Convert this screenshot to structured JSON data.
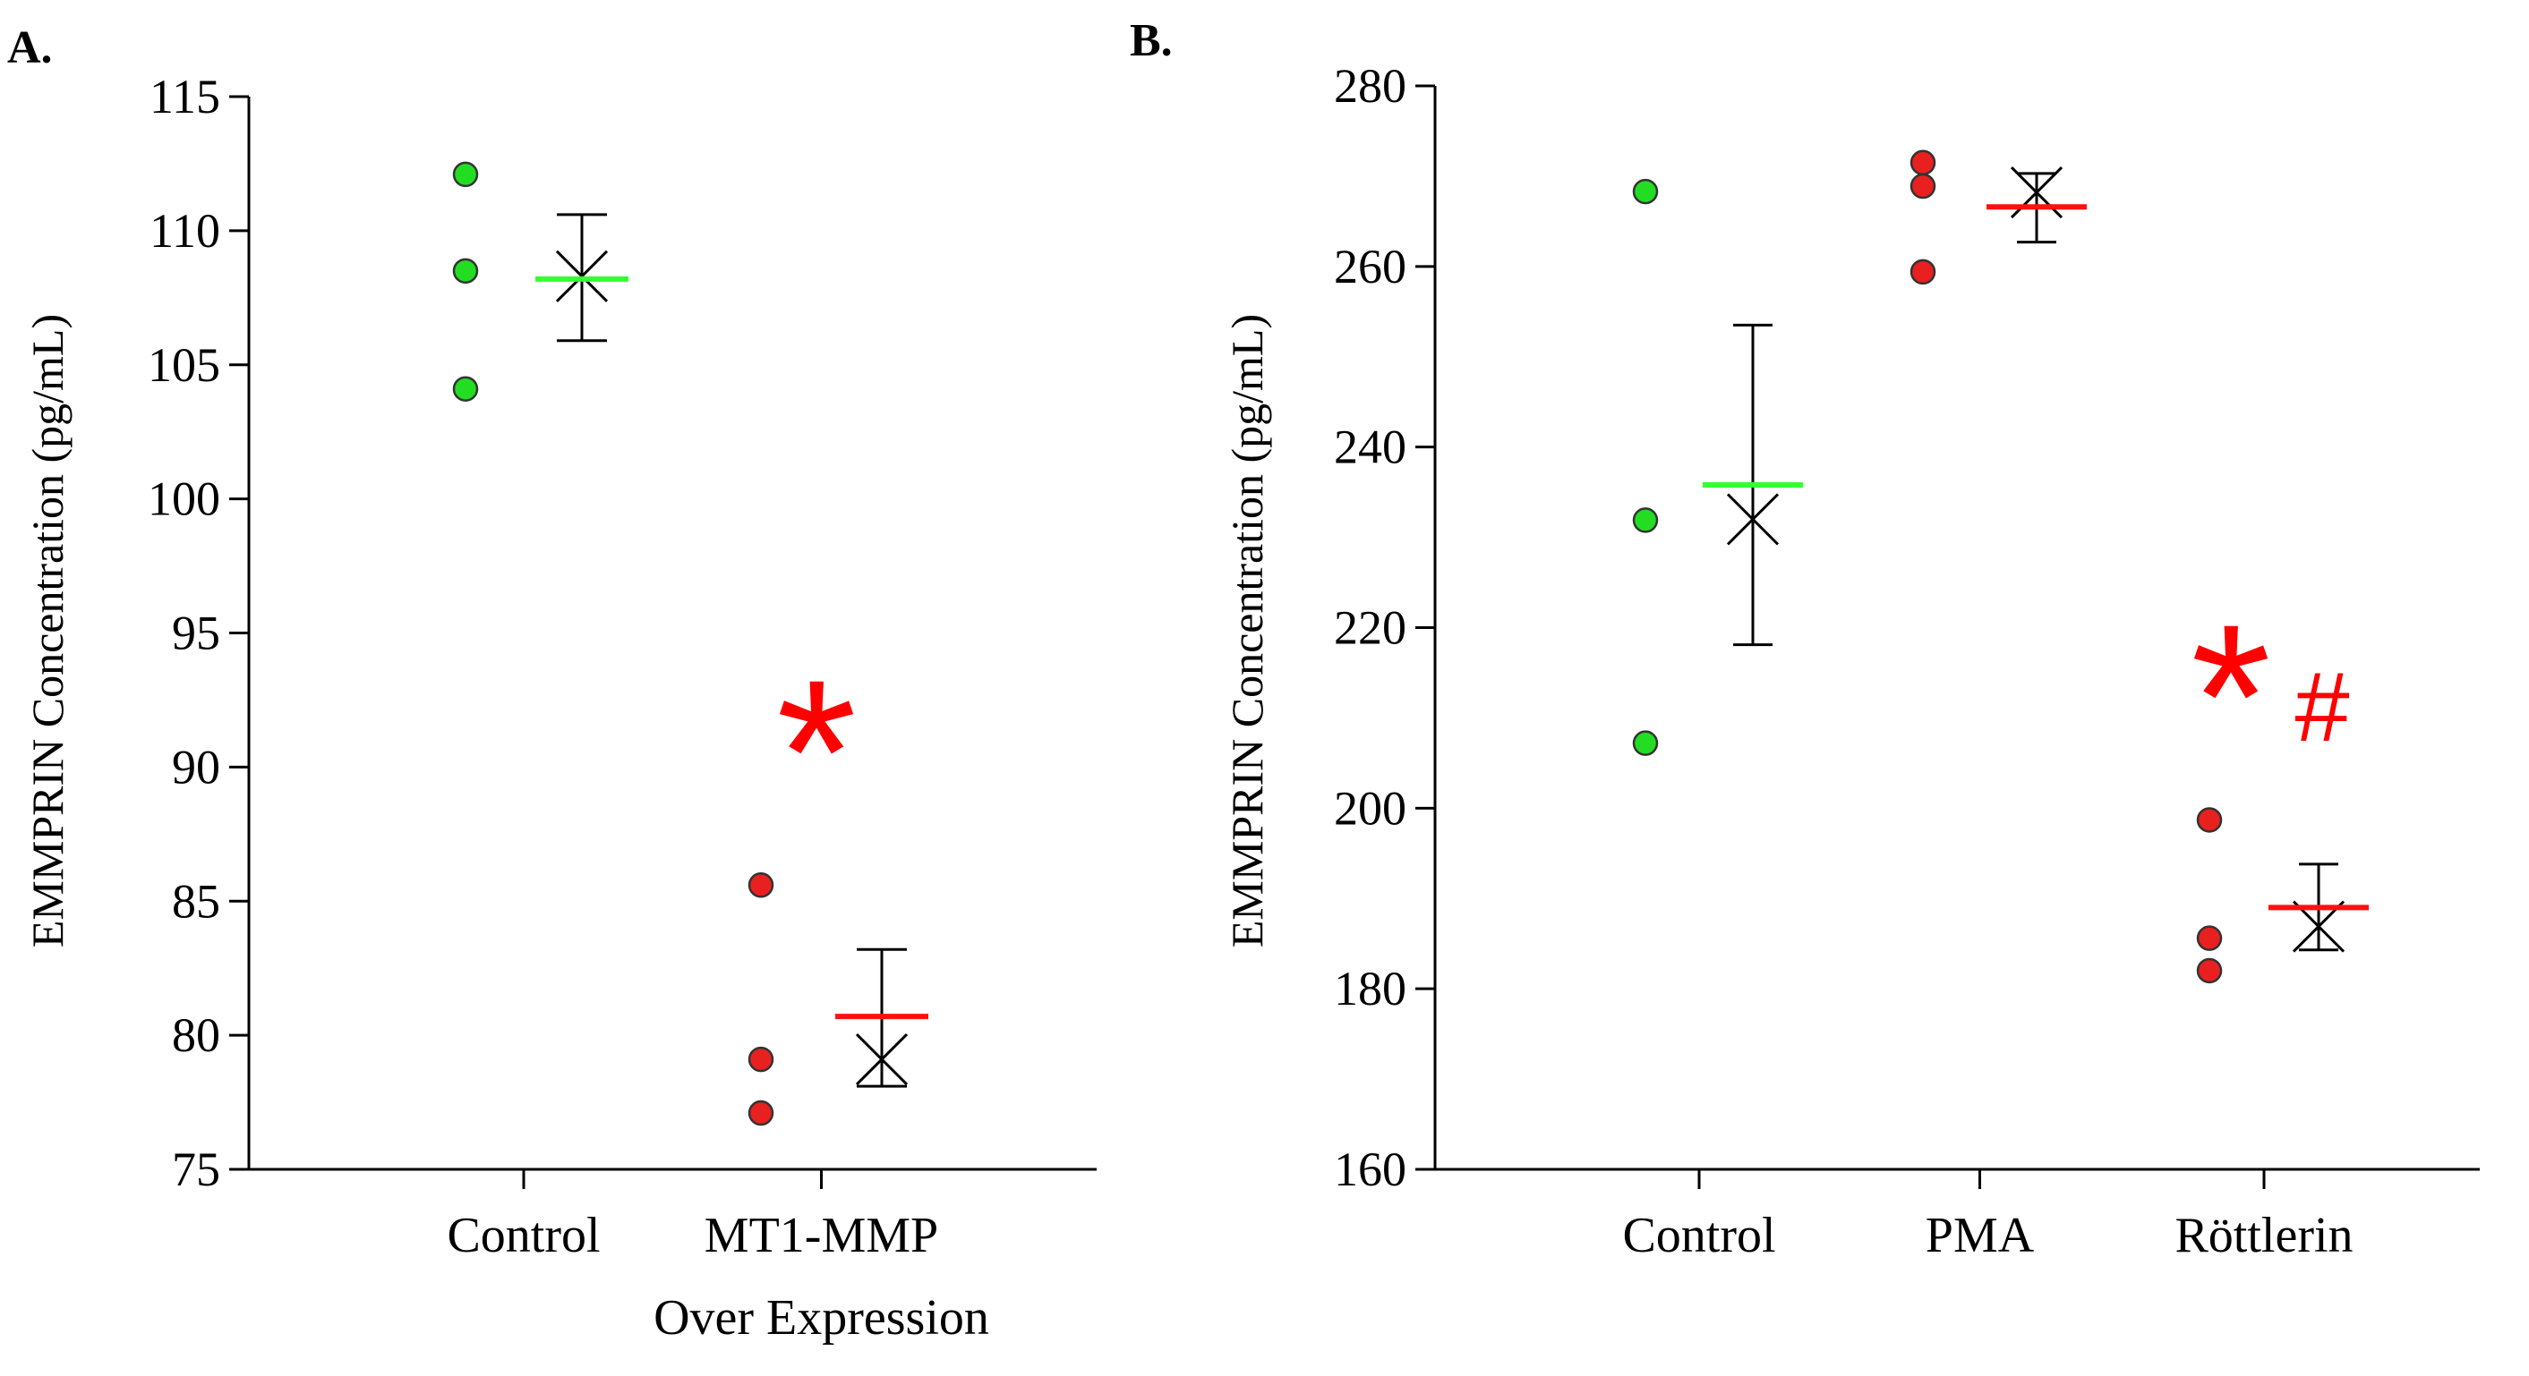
{
  "colors": {
    "control": "#22dd22",
    "treated": "#e82020",
    "mean_line_control": "#33ff33",
    "mean_line_treated": "#ff1111",
    "sig": "#ff0000",
    "axis": "#000000"
  },
  "chart_data": [
    {
      "panel": "A.",
      "type": "scatter",
      "ylabel": "EMMPRIN Concentration (pg/mL)",
      "ylim": [
        75,
        115
      ],
      "yticks": [
        "75",
        "80",
        "85",
        "90",
        "95",
        "100",
        "105",
        "110",
        "115"
      ],
      "categories": [
        "Control",
        "MT1-MMP Over Expression"
      ],
      "groups": [
        {
          "name": "Control",
          "label_lines": [
            "Control"
          ],
          "color": "control",
          "line_color": "mean_line_control",
          "points": [
            112.1,
            108.5,
            104.1
          ],
          "mean_line": 108.2,
          "x_marker": 108.3,
          "err_low": 105.9,
          "err_high": 110.6,
          "sig": ""
        },
        {
          "name": "MT1-MMP Over Expression",
          "label_lines": [
            "MT1-MMP",
            "Over Expression"
          ],
          "color": "treated",
          "line_color": "mean_line_treated",
          "points": [
            85.6,
            79.1,
            77.1
          ],
          "mean_line": 80.7,
          "x_marker": 79.1,
          "err_low": 78.1,
          "err_high": 83.2,
          "sig": "*"
        }
      ]
    },
    {
      "panel": "B.",
      "type": "scatter",
      "ylabel": "EMMPRIN Concentration (pg/mL)",
      "ylim": [
        160,
        280
      ],
      "yticks": [
        "160",
        "180",
        "200",
        "220",
        "240",
        "260",
        "280"
      ],
      "categories": [
        "Control",
        "PMA",
        "Röttlerin"
      ],
      "groups": [
        {
          "name": "Control",
          "label_lines": [
            "Control"
          ],
          "color": "control",
          "line_color": "mean_line_control",
          "points": [
            268.3,
            231.9,
            207.2
          ],
          "mean_line": 235.8,
          "x_marker": 232.0,
          "err_low": 218.1,
          "err_high": 253.5,
          "sig": ""
        },
        {
          "name": "PMA",
          "label_lines": [
            "PMA"
          ],
          "color": "treated",
          "line_color": "mean_line_treated",
          "points": [
            271.5,
            268.9,
            259.4
          ],
          "mean_line": 266.6,
          "x_marker": 268.2,
          "err_low": 262.7,
          "err_high": 270.3,
          "sig": ""
        },
        {
          "name": "Röttlerin",
          "label_lines": [
            "Röttlerin"
          ],
          "color": "treated",
          "line_color": "mean_line_treated",
          "points": [
            198.7,
            185.6,
            182.0
          ],
          "mean_line": 189.0,
          "x_marker": 186.9,
          "err_low": 184.3,
          "err_high": 193.8,
          "sig": "*#"
        }
      ]
    }
  ]
}
